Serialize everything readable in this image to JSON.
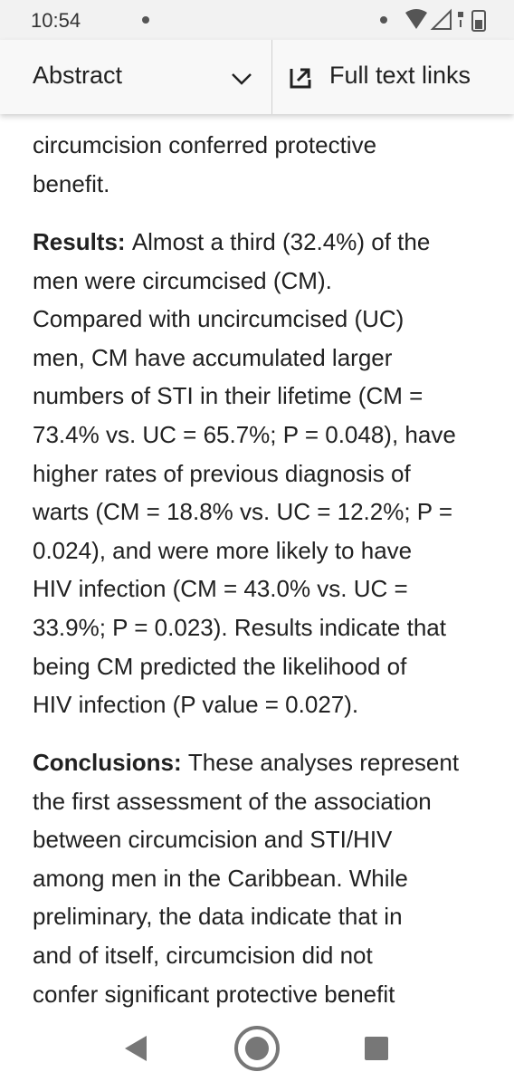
{
  "status_bar": {
    "time": "10:54"
  },
  "header": {
    "section": "Abstract",
    "links": "Full text links"
  },
  "abstract": {
    "intro": {
      "lines": [
        "circumcision conferred protective",
        "benefit."
      ]
    },
    "results": {
      "label": "Results:",
      "lines": [
        "Almost a third (32.4%) of the",
        "men were circumcised (CM).",
        "Compared with uncircumcised (UC)",
        "men, CM have accumulated larger",
        "numbers of STI in their lifetime (CM =",
        "73.4% vs. UC = 65.7%; P = 0.048), have",
        "higher rates of previous diagnosis of",
        "warts (CM = 18.8% vs. UC = 12.2%; P =",
        "0.024), and were more likely to have",
        "HIV infection (CM = 43.0% vs. UC =",
        "33.9%; P = 0.023). Results indicate that",
        "being CM predicted the likelihood of",
        "HIV infection (P value = 0.027)."
      ]
    },
    "conclusions": {
      "label": "Conclusions:",
      "lines": [
        "These analyses represent",
        "the first assessment of the association",
        "between circumcision and STI/HIV",
        "among men in the Caribbean. While",
        "preliminary, the data indicate that in",
        "and of itself, circumcision did not",
        "confer significant protective benefit"
      ]
    }
  }
}
